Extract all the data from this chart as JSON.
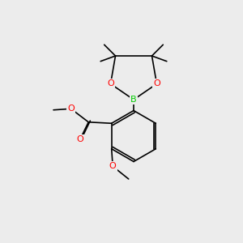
{
  "bg_color": "#ececec",
  "bond_color": "#000000",
  "bond_lw": 1.2,
  "O_color": "#ff0000",
  "B_color": "#00cc00",
  "font_size_atom": 8.0,
  "fig_size": [
    3.0,
    3.0
  ],
  "dpi": 100,
  "xlim": [
    0,
    10
  ],
  "ylim": [
    0,
    10
  ]
}
